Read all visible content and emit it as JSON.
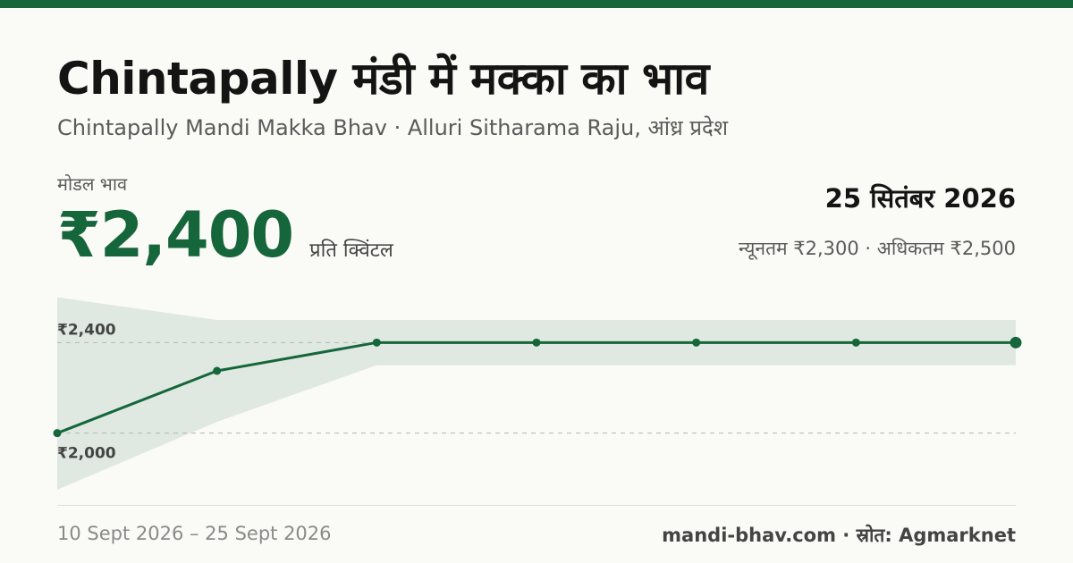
{
  "header": {
    "title": "Chintapally मंडी में मक्का का भाव",
    "subtitle": "Chintapally Mandi Makka Bhav · Alluri Sitharama Raju, आंध्र प्रदेश"
  },
  "price": {
    "label": "मोडल भाव",
    "value": "₹2,400",
    "unit": "प्रति क्विंटल"
  },
  "summary": {
    "date": "25 सितंबर 2026",
    "range_text": "न्यूनतम ₹2,300 · अधिकतम ₹2,500"
  },
  "chart_data": {
    "type": "line",
    "x": [
      "10 Sept 2026",
      "",
      "",
      "",
      "",
      "",
      "25 Sept 2026"
    ],
    "series": [
      {
        "values": [
          2000,
          2275,
          2400,
          2400,
          2400,
          2400,
          2400
        ]
      }
    ],
    "band_min": [
      1750,
      2050,
      2300,
      2300,
      2300,
      2300,
      2300
    ],
    "band_max": [
      2600,
      2500,
      2500,
      2500,
      2500,
      2500,
      2500
    ],
    "ylim": [
      1750,
      2650
    ],
    "y_ticks": [
      {
        "value": 2400,
        "label": "₹2,400"
      },
      {
        "value": 2000,
        "label": "₹2,000"
      }
    ],
    "colors": {
      "line": "#15663a",
      "band": "#dfe9e2",
      "grid": "#b5b5b5"
    },
    "grid": true
  },
  "footer": {
    "date_range": "10 Sept 2026 – 25 Sept 2026",
    "source": "mandi-bhav.com · स्रोत: Agmarknet"
  }
}
